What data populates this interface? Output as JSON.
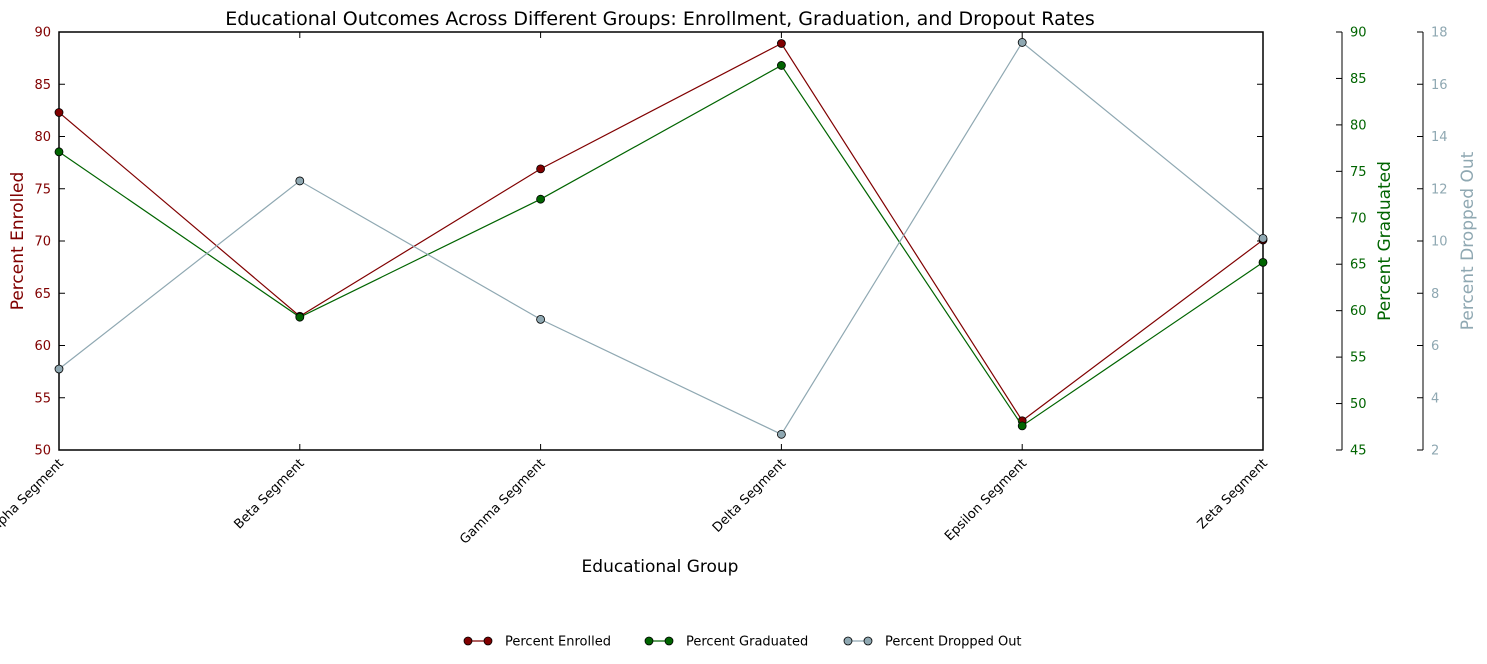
{
  "chart_data": {
    "type": "line",
    "title": "Educational Outcomes Across Different Groups: Enrollment, Graduation, and Dropout Rates",
    "xlabel": "Educational Group",
    "categories": [
      "Alpha Segment",
      "Beta Segment",
      "Gamma Segment",
      "Delta Segment",
      "Epsilon Segment",
      "Zeta Segment"
    ],
    "axes": [
      {
        "id": "left",
        "label": "Percent Enrolled",
        "ylim": [
          50,
          90
        ],
        "ticks": [
          50,
          55,
          60,
          65,
          70,
          75,
          80,
          85,
          90
        ],
        "color": "#800000"
      },
      {
        "id": "right1",
        "label": "Percent Graduated",
        "ylim": [
          45,
          90
        ],
        "ticks": [
          45,
          50,
          55,
          60,
          65,
          70,
          75,
          80,
          85,
          90
        ],
        "color": "#006400"
      },
      {
        "id": "right2",
        "label": "Percent Dropped Out",
        "ylim": [
          2,
          18
        ],
        "ticks": [
          2,
          4,
          6,
          8,
          10,
          12,
          14,
          16,
          18
        ],
        "color": "#8fa8b2"
      }
    ],
    "series": [
      {
        "name": "Percent Enrolled",
        "axis": "left",
        "color": "#800000",
        "values": [
          82.3,
          62.8,
          76.9,
          88.9,
          52.8,
          70.1
        ]
      },
      {
        "name": "Percent Graduated",
        "axis": "right1",
        "color": "#006400",
        "values": [
          77.1,
          59.3,
          72.0,
          86.4,
          47.6,
          65.2
        ]
      },
      {
        "name": "Percent Dropped Out",
        "axis": "right2",
        "color": "#8fa8b2",
        "values": [
          5.1,
          12.3,
          7.0,
          2.6,
          17.6,
          10.1
        ]
      }
    ],
    "grid": false,
    "legend": "bottom-center"
  }
}
